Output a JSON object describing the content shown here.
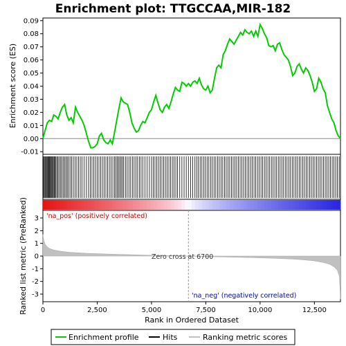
{
  "chart_data": {
    "type": "line",
    "title": "Enrichment plot: TTGCCAA,MIR-182",
    "panels": {
      "enrichment": {
        "ylabel": "Enrichment score (ES)",
        "ylim": [
          -0.012,
          0.092
        ],
        "yticks": [
          -0.01,
          0.0,
          0.01,
          0.02,
          0.03,
          0.04,
          0.05,
          0.06,
          0.07,
          0.08,
          0.09
        ],
        "ytick_labels": [
          "-0.01",
          "0.00",
          "0.01",
          "0.02",
          "0.03",
          "0.04",
          "0.05",
          "0.06",
          "0.07",
          "0.08",
          "0.09"
        ],
        "series": [
          {
            "name": "Enrichment profile",
            "color": "#00cc00",
            "x": [
              0,
              100,
              200,
              300,
              400,
              500,
              600,
              700,
              800,
              900,
              1000,
              1100,
              1200,
              1300,
              1400,
              1500,
              1600,
              1700,
              1800,
              1900,
              2000,
              2100,
              2200,
              2300,
              2400,
              2500,
              2600,
              2700,
              2800,
              2900,
              3000,
              3100,
              3200,
              3300,
              3400,
              3500,
              3600,
              3700,
              3800,
              3900,
              4000,
              4100,
              4200,
              4300,
              4400,
              4500,
              4600,
              4700,
              4800,
              4900,
              5000,
              5100,
              5200,
              5300,
              5400,
              5500,
              5600,
              5700,
              5800,
              5900,
              6000,
              6100,
              6200,
              6300,
              6400,
              6500,
              6600,
              6700,
              6800,
              6900,
              7000,
              7100,
              7200,
              7300,
              7400,
              7500,
              7600,
              7700,
              7800,
              7900,
              8000,
              8100,
              8200,
              8300,
              8400,
              8500,
              8600,
              8700,
              8800,
              8900,
              9000,
              9100,
              9200,
              9300,
              9400,
              9500,
              9600,
              9700,
              9800,
              9900,
              10000,
              10100,
              10200,
              10300,
              10400,
              10500,
              10600,
              10700,
              10800,
              10900,
              11000,
              11100,
              11200,
              11300,
              11400,
              11500,
              11600,
              11700,
              11800,
              11900,
              12000,
              12100,
              12200,
              12300,
              12400,
              12500,
              12600,
              12700,
              12800,
              12900,
              13000,
              13100,
              13200,
              13300,
              13400,
              13500,
              13600,
              13700
            ],
            "y": [
              0.0,
              0.006,
              0.012,
              0.014,
              0.013,
              0.018,
              0.017,
              0.015,
              0.02,
              0.024,
              0.026,
              0.018,
              0.014,
              0.016,
              0.012,
              0.024,
              0.02,
              0.017,
              0.014,
              0.01,
              0.004,
              -0.002,
              -0.007,
              -0.007,
              -0.006,
              -0.004,
              0.002,
              0.004,
              -0.001,
              -0.003,
              -0.004,
              -0.001,
              -0.004,
              0.005,
              0.014,
              0.023,
              0.031,
              0.028,
              0.027,
              0.026,
              0.02,
              0.012,
              0.008,
              0.005,
              0.006,
              0.01,
              0.013,
              0.012,
              0.016,
              0.02,
              0.022,
              0.028,
              0.033,
              0.027,
              0.022,
              0.02,
              0.024,
              0.026,
              0.023,
              0.028,
              0.034,
              0.039,
              0.037,
              0.036,
              0.043,
              0.042,
              0.04,
              0.042,
              0.04,
              0.043,
              0.044,
              0.042,
              0.046,
              0.041,
              0.038,
              0.037,
              0.04,
              0.035,
              0.037,
              0.046,
              0.054,
              0.056,
              0.054,
              0.064,
              0.067,
              0.072,
              0.076,
              0.074,
              0.072,
              0.075,
              0.078,
              0.081,
              0.079,
              0.083,
              0.081,
              0.08,
              0.082,
              0.078,
              0.082,
              0.078,
              0.087,
              0.084,
              0.08,
              0.077,
              0.071,
              0.07,
              0.071,
              0.067,
              0.072,
              0.073,
              0.068,
              0.064,
              0.062,
              0.06,
              0.055,
              0.048,
              0.05,
              0.055,
              0.057,
              0.053,
              0.05,
              0.054,
              0.052,
              0.048,
              0.043,
              0.036,
              0.038,
              0.046,
              0.043,
              0.038,
              0.035,
              0.025,
              0.02,
              0.015,
              0.012,
              0.006,
              0.002,
              0.0
            ]
          }
        ]
      },
      "hits": {
        "series_name": "Hits",
        "positions": [
          20,
          60,
          95,
          130,
          165,
          200,
          235,
          270,
          305,
          340,
          375,
          410,
          445,
          480,
          520,
          560,
          600,
          650,
          700,
          760,
          820,
          880,
          940,
          1000,
          1060,
          1120,
          1180,
          1250,
          1320,
          1400,
          1480,
          1560,
          1640,
          1720,
          1800,
          1900,
          2000,
          2100,
          2180,
          2260,
          2340,
          2420,
          2500,
          2580,
          2660,
          2740,
          2820,
          2900,
          2980,
          3060,
          3140,
          3220,
          3300,
          3360,
          3420,
          3480,
          3540,
          3600,
          3660,
          3720,
          3800,
          3880,
          3960,
          4040,
          4120,
          4200,
          4280,
          4360,
          4440,
          4520,
          4600,
          4700,
          4800,
          4900,
          5000,
          5080,
          5160,
          5240,
          5320,
          5400,
          5480,
          5560,
          5640,
          5720,
          5800,
          5880,
          5960,
          6040,
          6120,
          6200,
          6300,
          6400,
          6500,
          6600,
          6700,
          6800,
          6900,
          7000,
          7080,
          7160,
          7240,
          7320,
          7400,
          7480,
          7560,
          7640,
          7720,
          7800,
          7880,
          7960,
          8040,
          8120,
          8200,
          8280,
          8360,
          8440,
          8520,
          8600,
          8680,
          8760,
          8840,
          8920,
          9000,
          9080,
          9160,
          9240,
          9320,
          9400,
          9480,
          9560,
          9640,
          9720,
          9800,
          9880,
          9960,
          10040,
          10120,
          10200,
          10280,
          10360,
          10440,
          10520,
          10600,
          10680,
          10760,
          10840,
          10920,
          11000,
          11080,
          11160,
          11240,
          11320,
          11400,
          11480,
          11560,
          11640,
          11720,
          11800,
          11880,
          11960,
          12040,
          12120,
          12200,
          12280,
          12360,
          12440,
          12520,
          12600,
          12680,
          12760,
          12840,
          12920,
          13000,
          13080,
          13160,
          13240,
          13320,
          13400,
          13480,
          13560,
          13640
        ]
      },
      "ranked_metric": {
        "series_name": "Ranking metric scores",
        "ylabel": "Ranked list metric (PreRanked)",
        "xlabel": "Rank in Ordered Dataset",
        "ylim": [
          -3.6,
          3.6
        ],
        "yticks": [
          -3,
          -2,
          -1,
          0,
          1,
          2,
          3
        ],
        "ytick_labels": [
          "-3",
          "-2",
          "-1",
          "0",
          "1",
          "2",
          "3"
        ],
        "x": [
          0,
          20,
          50,
          100,
          200,
          300,
          500,
          800,
          1200,
          2000,
          3000,
          4000,
          5000,
          6000,
          6700,
          7500,
          8500,
          9500,
          10500,
          11500,
          12000,
          12500,
          12900,
          13200,
          13400,
          13550,
          13650,
          13700
        ],
        "y": [
          1.7,
          1.45,
          1.2,
          0.95,
          0.72,
          0.6,
          0.48,
          0.38,
          0.3,
          0.22,
          0.16,
          0.11,
          0.06,
          0.02,
          0.0,
          -0.04,
          -0.08,
          -0.12,
          -0.17,
          -0.24,
          -0.3,
          -0.38,
          -0.5,
          -0.65,
          -0.85,
          -1.1,
          -1.6,
          -3.4
        ]
      }
    },
    "xlim": [
      0,
      13700
    ],
    "xticks": [
      0,
      2500,
      5000,
      7500,
      10000,
      12500
    ],
    "xtick_labels": [
      "0",
      "2,500",
      "5,000",
      "7,500",
      "10,000",
      "12,500"
    ],
    "zero_cross": 6700,
    "annotations": {
      "pos_label": "'na_pos' (positively correlated)",
      "neg_label": "'na_neg' (negatively correlated)",
      "zero_cross_label": "Zero cross at 6700"
    },
    "colors": {
      "profile": "#00cc00",
      "pos_text": "#cc0000",
      "neg_text": "#0000cc",
      "metric_fill": "#c0c0c0",
      "hit_line": "#000000",
      "bar_red": "#e8001c",
      "bar_blue": "#2a2adc"
    },
    "legend": [
      "Enrichment profile",
      "Hits",
      "Ranking metric scores"
    ]
  }
}
